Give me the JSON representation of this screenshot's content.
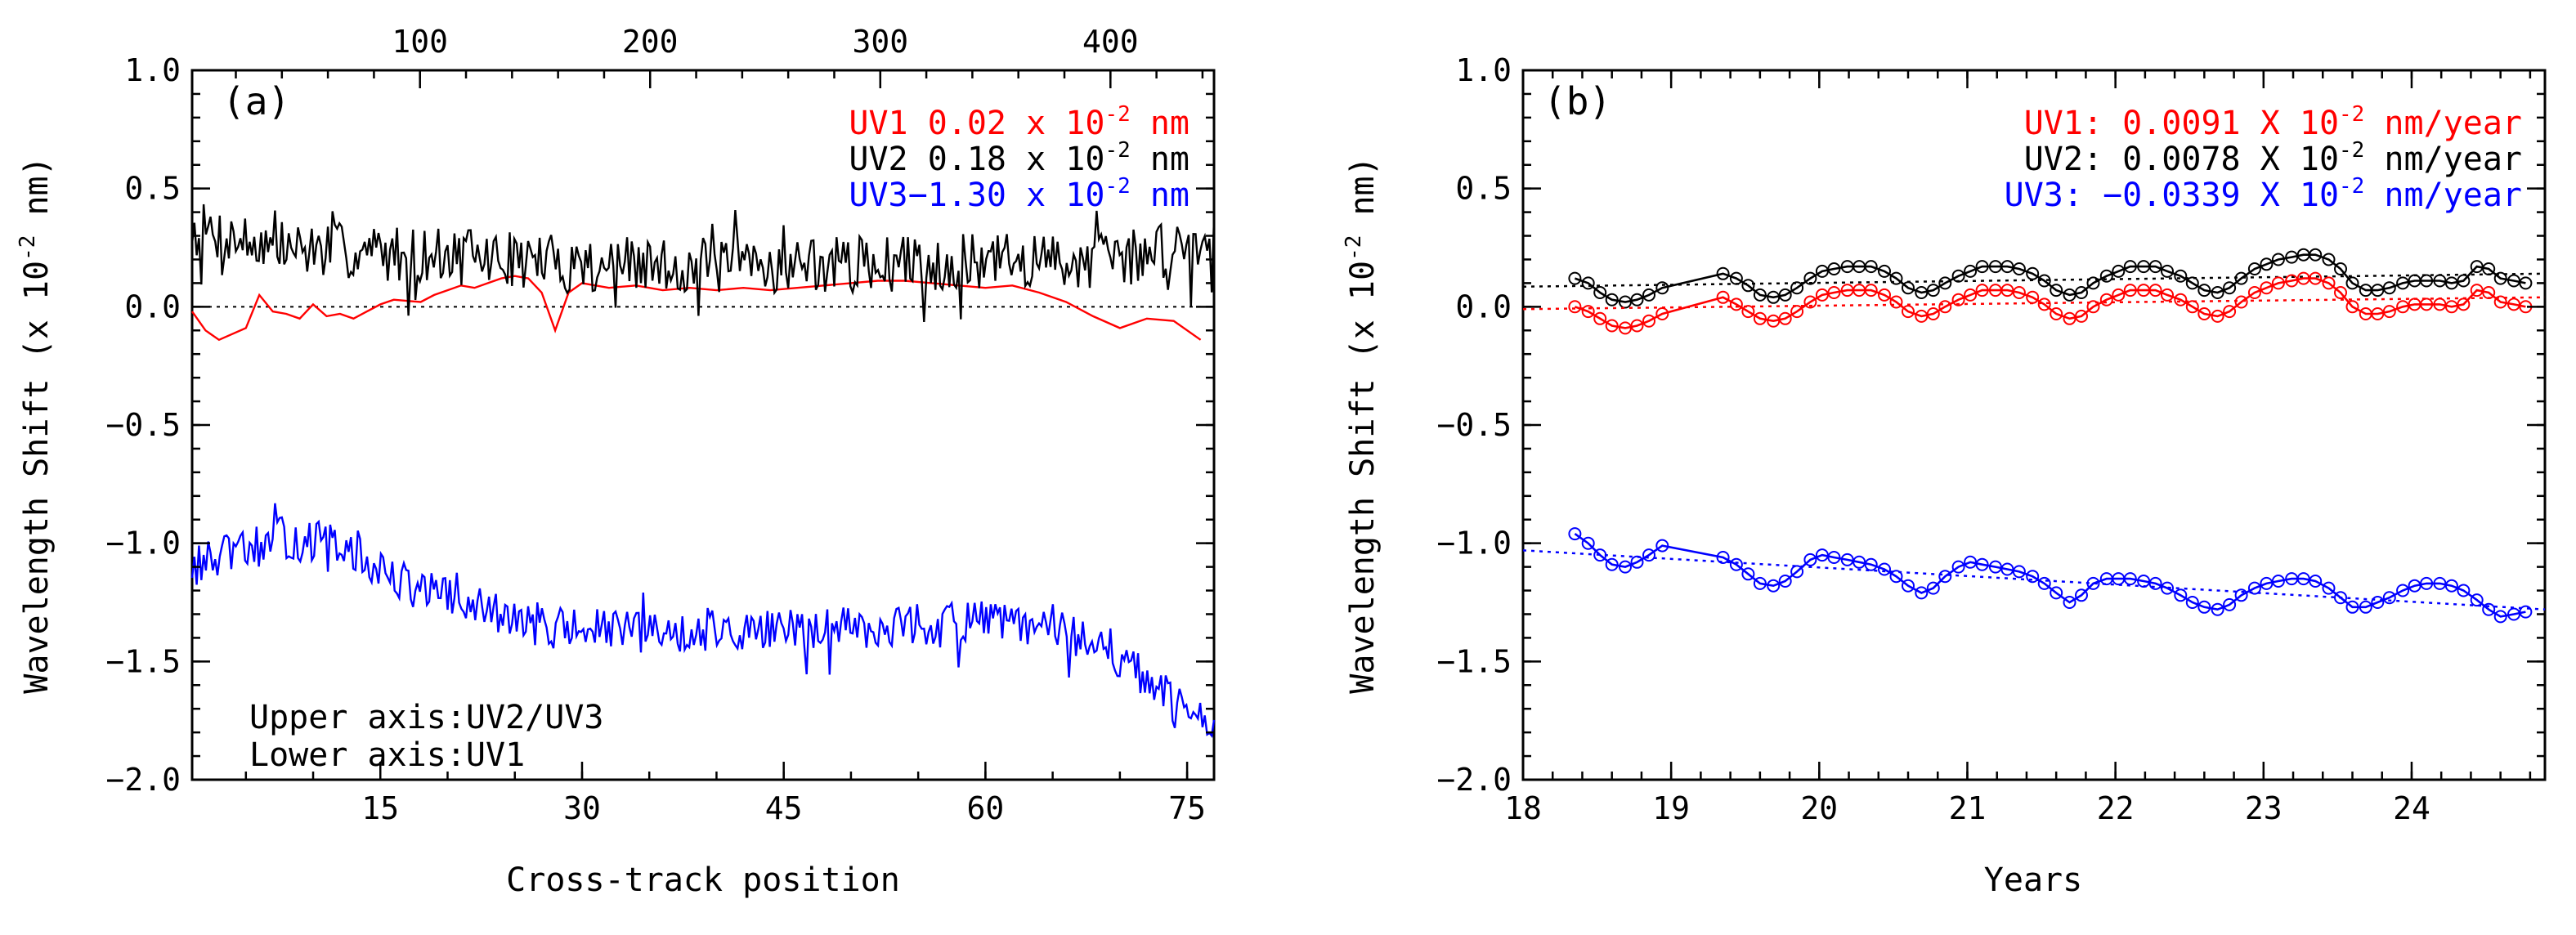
{
  "chart_data": [
    {
      "type": "line",
      "panel_label": "(a)",
      "xlabel": "Cross-track position",
      "ylabel": "Wavelength Shift (x 10",
      "ylabel_sup": "-2",
      "ylabel_tail": " nm)",
      "x_bottom": {
        "lim": [
          1,
          77
        ],
        "ticks": [
          15,
          30,
          45,
          60,
          75
        ],
        "tick_labels": [
          "15",
          "30",
          "45",
          "60",
          "75"
        ],
        "series": "UV1"
      },
      "x_top": {
        "lim": [
          1,
          445
        ],
        "ticks": [
          100,
          200,
          300,
          400
        ],
        "tick_labels": [
          "100",
          "200",
          "300",
          "400"
        ],
        "series": [
          "UV2",
          "UV3"
        ]
      },
      "ylim": [
        -2.0,
        1.0
      ],
      "yticks": [
        1.0,
        0.5,
        0.0,
        -0.5,
        -1.0,
        -1.5,
        -2.0
      ],
      "ytick_labels": [
        "1.0",
        "0.5",
        "0.0",
        "−0.5",
        "−1.0",
        "−1.5",
        "−2.0"
      ],
      "zero_line": 0.0,
      "legend": [
        {
          "name": "UV1",
          "value": "0.02",
          "unit": "nm",
          "color": "#ff0000",
          "text_pre": "UV1  0.02 x 10",
          "sup": "-2",
          "text_post": " nm"
        },
        {
          "name": "UV2",
          "value": "0.18",
          "unit": "nm",
          "color": "#000000",
          "text_pre": "UV2  0.18 x 10",
          "sup": "-2",
          "text_post": " nm"
        },
        {
          "name": "UV3",
          "value": "-1.30",
          "unit": "nm",
          "color": "#0000ff",
          "text_pre": "UV3−1.30 x 10",
          "sup": "-2",
          "text_post": " nm"
        }
      ],
      "annotations": [
        "Upper axis:UV2/UV3",
        "Lower axis:UV1"
      ],
      "series": [
        {
          "name": "UV1",
          "axis": "bottom",
          "color": "#ff0000",
          "x": [
            1,
            2,
            3,
            5,
            6,
            7,
            8,
            9,
            10,
            11,
            12,
            13,
            14,
            15,
            16,
            18,
            19,
            20,
            21,
            22,
            23,
            24,
            25,
            26,
            27,
            28,
            29,
            30,
            32,
            34,
            36,
            38,
            40,
            42,
            44,
            46,
            48,
            50,
            52,
            54,
            56,
            58,
            60,
            62,
            64,
            66,
            68,
            70,
            72,
            74,
            76
          ],
          "y": [
            -0.02,
            -0.1,
            -0.14,
            -0.09,
            0.05,
            -0.02,
            -0.03,
            -0.05,
            0.01,
            -0.04,
            -0.03,
            -0.05,
            -0.02,
            0.01,
            0.03,
            0.02,
            0.05,
            0.07,
            0.09,
            0.08,
            0.1,
            0.12,
            0.13,
            0.12,
            0.06,
            -0.1,
            0.06,
            0.1,
            0.08,
            0.09,
            0.07,
            0.08,
            0.07,
            0.08,
            0.07,
            0.08,
            0.09,
            0.1,
            0.11,
            0.11,
            0.1,
            0.09,
            0.08,
            0.09,
            0.06,
            0.02,
            -0.04,
            -0.09,
            -0.05,
            -0.06,
            -0.14
          ]
        },
        {
          "name": "UV2",
          "axis": "top",
          "color": "#000000",
          "x_start": 1,
          "x_end": 445,
          "trend": [
            [
              1,
              0.33
            ],
            [
              40,
              0.25
            ],
            [
              100,
              0.22
            ],
            [
              200,
              0.17
            ],
            [
              300,
              0.18
            ],
            [
              400,
              0.2
            ],
            [
              445,
              0.28
            ]
          ],
          "noise_amp": 0.12,
          "seed": 7
        },
        {
          "name": "UV3",
          "axis": "top",
          "color": "#0000ff",
          "x_start": 1,
          "x_end": 445,
          "trend": [
            [
              1,
              -1.1
            ],
            [
              40,
              -0.98
            ],
            [
              60,
              -1.0
            ],
            [
              100,
              -1.2
            ],
            [
              150,
              -1.35
            ],
            [
              200,
              -1.38
            ],
            [
              250,
              -1.37
            ],
            [
              300,
              -1.35
            ],
            [
              350,
              -1.33
            ],
            [
              380,
              -1.38
            ],
            [
              400,
              -1.45
            ],
            [
              420,
              -1.62
            ],
            [
              445,
              -1.8
            ]
          ],
          "noise_amp": 0.09,
          "seed": 13
        }
      ]
    },
    {
      "type": "line",
      "panel_label": "(b)",
      "xlabel": "Years",
      "ylabel": "Wavelength Shift (x 10",
      "ylabel_sup": "-2",
      "ylabel_tail": " nm)",
      "xlim": [
        18.0,
        24.9
      ],
      "xticks": [
        18,
        19,
        20,
        21,
        22,
        23,
        24
      ],
      "xtick_labels": [
        "18",
        "19",
        "20",
        "21",
        "22",
        "23",
        "24"
      ],
      "ylim": [
        -2.0,
        1.0
      ],
      "yticks": [
        1.0,
        0.5,
        0.0,
        -0.5,
        -1.0,
        -1.5,
        -2.0
      ],
      "ytick_labels": [
        "1.0",
        "0.5",
        "0.0",
        "−0.5",
        "−1.0",
        "−1.5",
        "−2.0"
      ],
      "legend": [
        {
          "name": "UV1",
          "slope": "0.0091",
          "unit": "nm/year",
          "color": "#ff0000",
          "text_pre": "UV1:   0.0091 X 10",
          "sup": "-2",
          "text_post": " nm/year"
        },
        {
          "name": "UV2",
          "slope": "0.0078",
          "unit": "nm/year",
          "color": "#000000",
          "text_pre": "UV2:   0.0078 X 10",
          "sup": "-2",
          "text_post": " nm/year"
        },
        {
          "name": "UV3",
          "slope": "-0.0339",
          "unit": "nm/year",
          "color": "#0000ff",
          "text_pre": "UV3: −0.0339 X 10",
          "sup": "-2",
          "text_post": " nm/year"
        }
      ],
      "x": [
        18.35,
        18.44,
        18.52,
        18.6,
        18.69,
        18.77,
        18.85,
        18.94,
        19.35,
        19.44,
        19.52,
        19.6,
        19.69,
        19.77,
        19.85,
        19.94,
        20.02,
        20.1,
        20.19,
        20.27,
        20.35,
        20.44,
        20.52,
        20.6,
        20.69,
        20.77,
        20.85,
        20.94,
        21.02,
        21.1,
        21.19,
        21.27,
        21.35,
        21.44,
        21.52,
        21.6,
        21.69,
        21.77,
        21.85,
        21.94,
        22.02,
        22.1,
        22.19,
        22.27,
        22.35,
        22.44,
        22.52,
        22.6,
        22.69,
        22.77,
        22.85,
        22.94,
        23.02,
        23.1,
        23.19,
        23.27,
        23.35,
        23.44,
        23.52,
        23.6,
        23.69,
        23.77,
        23.85,
        23.94,
        24.02,
        24.1,
        24.19,
        24.27,
        24.35,
        24.44,
        24.52,
        24.6,
        24.69,
        24.77
      ],
      "series": [
        {
          "name": "UV2",
          "color": "#000000",
          "trend_line": [
            [
              18.0,
              0.085
            ],
            [
              24.9,
              0.14
            ]
          ],
          "y": [
            0.12,
            0.1,
            0.06,
            0.03,
            0.02,
            0.03,
            0.05,
            0.08,
            0.14,
            0.12,
            0.09,
            0.05,
            0.04,
            0.05,
            0.08,
            0.12,
            0.15,
            0.16,
            0.17,
            0.17,
            0.17,
            0.15,
            0.12,
            0.08,
            0.06,
            0.07,
            0.1,
            0.13,
            0.15,
            0.17,
            0.17,
            0.17,
            0.16,
            0.14,
            0.11,
            0.07,
            0.05,
            0.06,
            0.1,
            0.13,
            0.15,
            0.17,
            0.17,
            0.17,
            0.15,
            0.13,
            0.1,
            0.07,
            0.06,
            0.08,
            0.12,
            0.16,
            0.18,
            0.2,
            0.21,
            0.22,
            0.22,
            0.2,
            0.16,
            0.1,
            0.07,
            0.07,
            0.08,
            0.1,
            0.11,
            0.11,
            0.11,
            0.1,
            0.11,
            0.17,
            0.16,
            0.12,
            0.11,
            0.1
          ]
        },
        {
          "name": "UV1",
          "color": "#ff0000",
          "trend_line": [
            [
              18.0,
              -0.01
            ],
            [
              24.9,
              0.04
            ]
          ],
          "y": [
            0.0,
            -0.02,
            -0.05,
            -0.08,
            -0.09,
            -0.08,
            -0.06,
            -0.03,
            0.04,
            0.01,
            -0.02,
            -0.05,
            -0.06,
            -0.05,
            -0.02,
            0.02,
            0.05,
            0.06,
            0.07,
            0.07,
            0.07,
            0.05,
            0.02,
            -0.02,
            -0.04,
            -0.03,
            0.0,
            0.03,
            0.05,
            0.07,
            0.07,
            0.07,
            0.06,
            0.04,
            0.01,
            -0.03,
            -0.05,
            -0.04,
            0.0,
            0.03,
            0.05,
            0.07,
            0.07,
            0.07,
            0.05,
            0.03,
            0.0,
            -0.03,
            -0.04,
            -0.02,
            0.02,
            0.06,
            0.08,
            0.1,
            0.11,
            0.12,
            0.12,
            0.1,
            0.06,
            0.0,
            -0.03,
            -0.03,
            -0.02,
            0.0,
            0.01,
            0.01,
            0.01,
            0.0,
            0.01,
            0.07,
            0.06,
            0.02,
            0.01,
            0.0
          ]
        },
        {
          "name": "UV3",
          "color": "#0000ff",
          "trend_line": [
            [
              18.0,
              -1.03
            ],
            [
              24.9,
              -1.28
            ]
          ],
          "y": [
            -0.96,
            -1.0,
            -1.05,
            -1.09,
            -1.1,
            -1.08,
            -1.05,
            -1.01,
            -1.06,
            -1.09,
            -1.13,
            -1.17,
            -1.18,
            -1.16,
            -1.12,
            -1.07,
            -1.05,
            -1.06,
            -1.07,
            -1.08,
            -1.09,
            -1.11,
            -1.14,
            -1.18,
            -1.21,
            -1.19,
            -1.14,
            -1.1,
            -1.08,
            -1.09,
            -1.1,
            -1.11,
            -1.12,
            -1.14,
            -1.17,
            -1.21,
            -1.25,
            -1.22,
            -1.17,
            -1.15,
            -1.15,
            -1.15,
            -1.16,
            -1.17,
            -1.19,
            -1.22,
            -1.25,
            -1.27,
            -1.28,
            -1.26,
            -1.22,
            -1.19,
            -1.17,
            -1.16,
            -1.15,
            -1.15,
            -1.16,
            -1.19,
            -1.23,
            -1.27,
            -1.27,
            -1.25,
            -1.23,
            -1.2,
            -1.18,
            -1.17,
            -1.17,
            -1.18,
            -1.2,
            -1.24,
            -1.28,
            -1.31,
            -1.3,
            -1.29
          ]
        }
      ]
    }
  ]
}
